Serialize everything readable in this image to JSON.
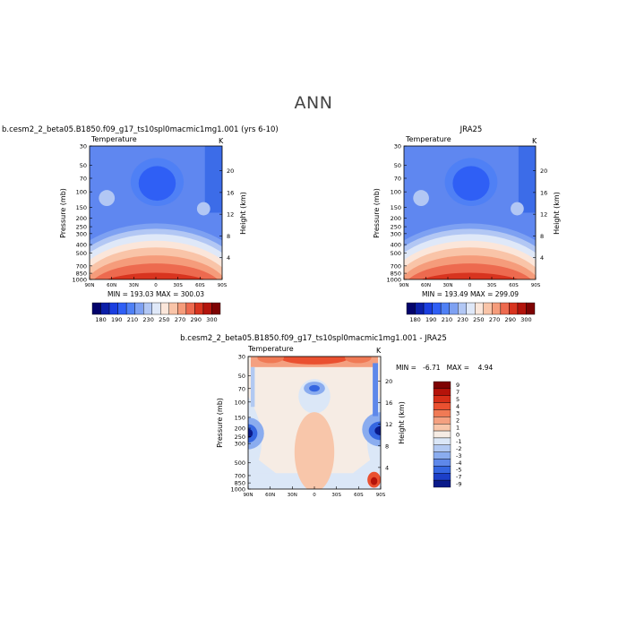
{
  "page": {
    "title": "ANN"
  },
  "chart_data": [
    {
      "type": "heatmap",
      "run_label": "b.cesm2_2_beta05.B1850.f09_g17_ts10spl0macmic1mg1.001 (yrs 6-10)",
      "variable": "Temperature",
      "unit": "K",
      "xlabel": "",
      "ylabel": "Pressure (mb)",
      "y2label": "Height (km)",
      "x_ticks": [
        "90N",
        "60N",
        "30N",
        "0",
        "30S",
        "60S",
        "90S"
      ],
      "y_ticks": [
        30,
        50,
        70,
        100,
        150,
        200,
        250,
        300,
        400,
        500,
        700,
        850,
        1000
      ],
      "y2_ticks": [
        4,
        8,
        12,
        16,
        20
      ],
      "field": "model_temperature",
      "stats": "MIN = 193.03   MAX = 300.03",
      "min": 193.03,
      "max": 300.03,
      "colorbar_levels": [
        "180",
        "190",
        "200",
        "210",
        "220",
        "230",
        "240",
        "250",
        "260",
        "270",
        "280",
        "290",
        "300"
      ],
      "colorbar_labels": [
        "180",
        "190",
        "210",
        "230",
        "250",
        "270",
        "290",
        "300"
      ]
    },
    {
      "type": "heatmap",
      "run_label": "JRA25",
      "variable": "Temperature",
      "unit": "K",
      "xlabel": "",
      "ylabel": "Pressure (mb)",
      "y2label": "Height (km)",
      "x_ticks": [
        "90N",
        "60N",
        "30N",
        "0",
        "30S",
        "60S",
        "90S"
      ],
      "y_ticks": [
        30,
        50,
        70,
        100,
        150,
        200,
        250,
        300,
        400,
        500,
        700,
        850,
        1000
      ],
      "y2_ticks": [
        4,
        8,
        12,
        16,
        20
      ],
      "field": "obs_temperature",
      "stats": "MIN = 193.49   MAX = 299.09",
      "min": 193.49,
      "max": 299.09,
      "colorbar_levels": [
        "180",
        "190",
        "200",
        "210",
        "220",
        "230",
        "240",
        "250",
        "260",
        "270",
        "280",
        "290",
        "300"
      ],
      "colorbar_labels": [
        "180",
        "190",
        "210",
        "230",
        "250",
        "270",
        "290",
        "300"
      ]
    },
    {
      "type": "heatmap",
      "run_label": "b.cesm2_2_beta05.B1850.f09_g17_ts10spl0macmic1mg1.001 - JRA25",
      "variable": "Temperature",
      "unit": "K",
      "xlabel": "",
      "ylabel": "Pressure (mb)",
      "y2label": "Height (km)",
      "x_ticks": [
        "90N",
        "60N",
        "30N",
        "0",
        "30S",
        "60S",
        "90S"
      ],
      "y_ticks": [
        30,
        50,
        70,
        100,
        150,
        200,
        250,
        300,
        500,
        700,
        850,
        1000
      ],
      "y2_ticks": [
        4,
        8,
        12,
        16,
        20
      ],
      "field": "difference",
      "stats": "MIN =   -6.71   MAX =    4.94",
      "min": -6.71,
      "max": 4.94,
      "colorbar_levels": [
        "9",
        "7",
        "5",
        "4",
        "3",
        "2",
        "1",
        "0",
        "-1",
        "-2",
        "-3",
        "-4",
        "-5",
        "-7",
        "-9"
      ]
    }
  ],
  "colors": {
    "abs_scale": [
      "#03036b",
      "#0b1fa8",
      "#1a3ee0",
      "#2f5ff5",
      "#4f80f5",
      "#7ea1f2",
      "#b2c7f4",
      "#dfe8f8",
      "#fbe6da",
      "#f9c4a8",
      "#f59c7b",
      "#ed6a4f",
      "#d8341f",
      "#b3140c",
      "#7e0303"
    ],
    "diff_scale": [
      "#7e0303",
      "#b5130a",
      "#d62e18",
      "#ea5030",
      "#f07a55",
      "#f4a080",
      "#f8c6aa",
      "#f6ece4",
      "#dbe7f7",
      "#b2c9f2",
      "#8aacef",
      "#5e88ea",
      "#3566e1",
      "#1c3fc8",
      "#0a1a8a"
    ]
  }
}
